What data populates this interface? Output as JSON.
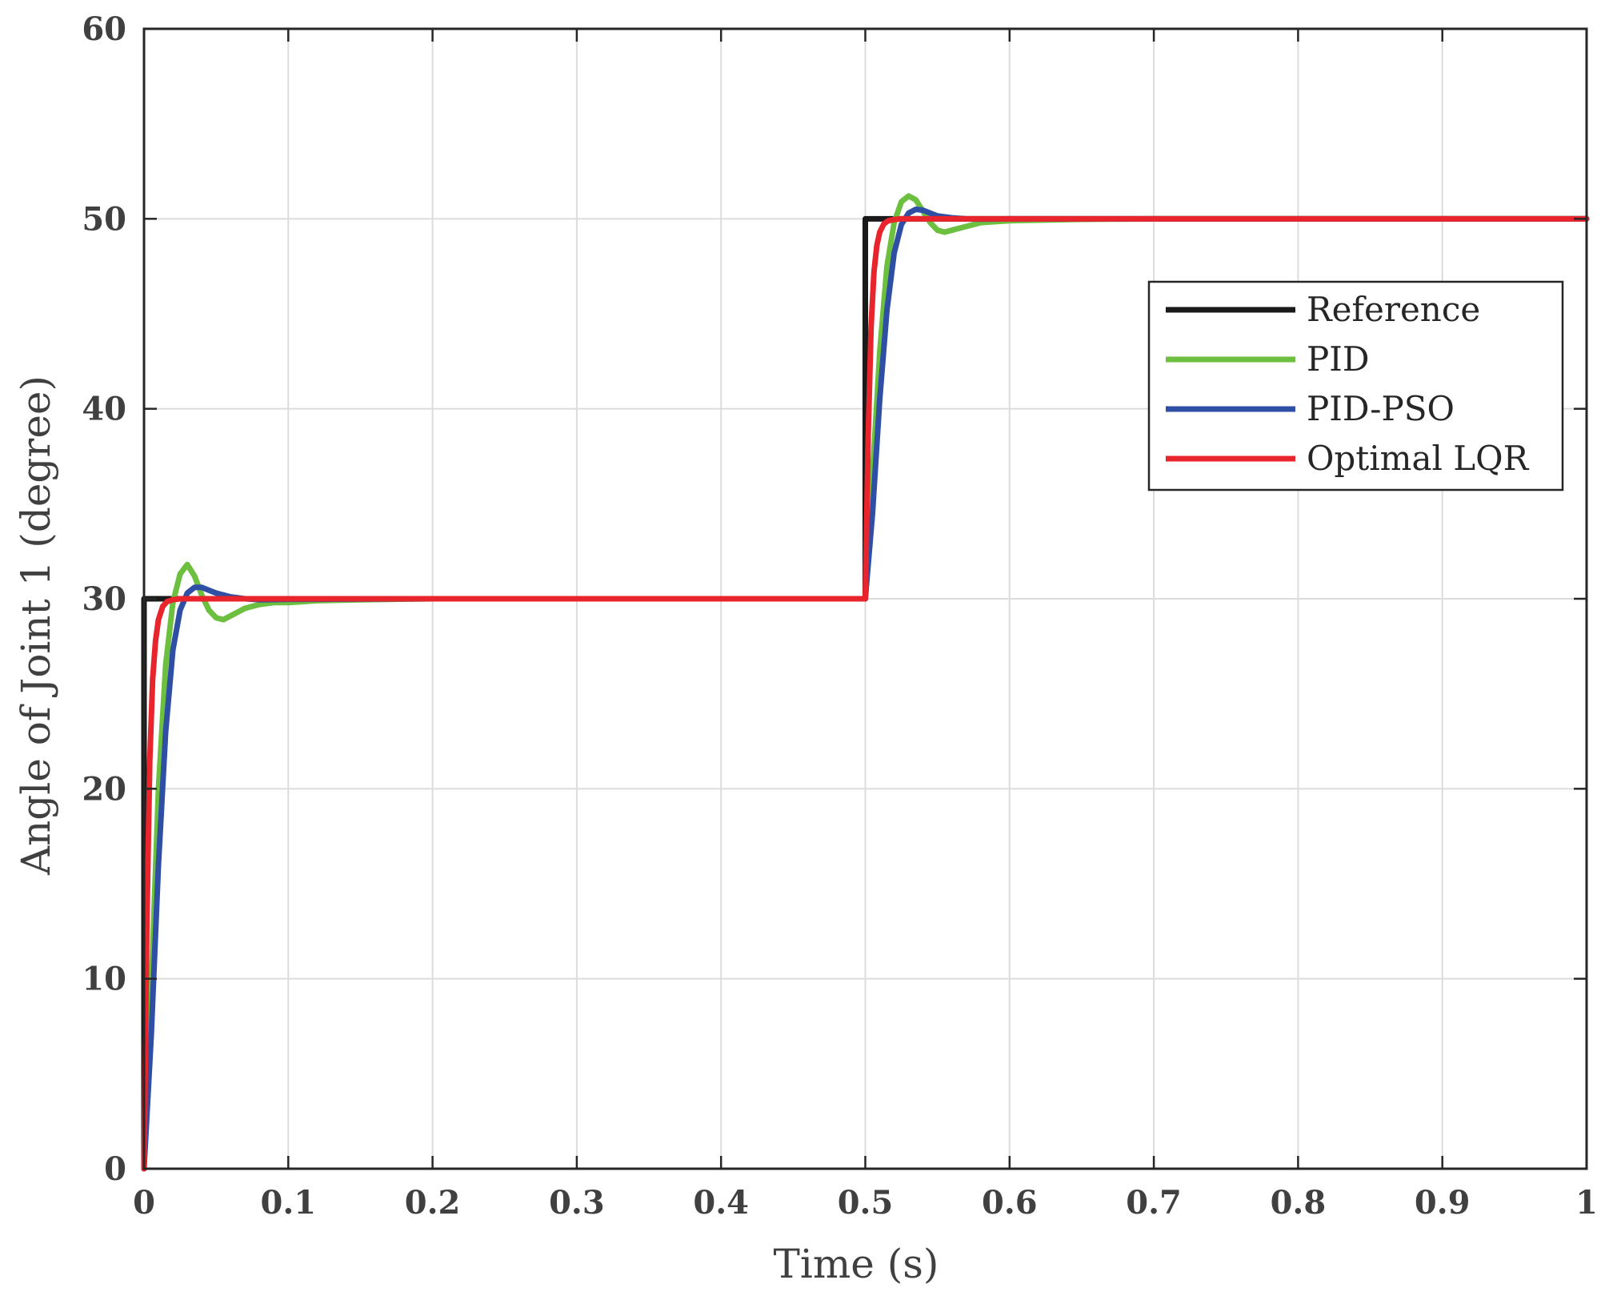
{
  "chart_data": {
    "type": "line",
    "title": "",
    "xlabel": "Time (s)",
    "ylabel": "Angle of Joint 1 (degree)",
    "xlim": [
      0,
      1
    ],
    "ylim": [
      0,
      60
    ],
    "xticks": [
      "0",
      "0.1",
      "0.2",
      "0.3",
      "0.4",
      "0.5",
      "0.6",
      "0.7",
      "0.8",
      "0.9",
      "1"
    ],
    "yticks": [
      "0",
      "10",
      "20",
      "30",
      "40",
      "50",
      "60"
    ],
    "grid": true,
    "legend_position": "top-right",
    "series": [
      {
        "name": "Reference",
        "color": "#1a1a1a",
        "x": [
          0,
          0,
          0.5,
          0.5,
          1
        ],
        "y": [
          0,
          30,
          30,
          50,
          50
        ]
      },
      {
        "name": "PID",
        "color": "#6cbf3f",
        "x": [
          0,
          0.005,
          0.01,
          0.015,
          0.02,
          0.025,
          0.03,
          0.035,
          0.04,
          0.045,
          0.05,
          0.055,
          0.06,
          0.07,
          0.08,
          0.09,
          0.1,
          0.12,
          0.15,
          0.2,
          0.5,
          0.505,
          0.51,
          0.515,
          0.52,
          0.525,
          0.53,
          0.535,
          0.54,
          0.545,
          0.55,
          0.555,
          0.56,
          0.57,
          0.58,
          0.59,
          0.6,
          0.62,
          0.65,
          0.7,
          1
        ],
        "y": [
          0,
          9.5,
          20,
          26.5,
          29.8,
          31.3,
          31.8,
          31.2,
          30.2,
          29.4,
          29,
          28.9,
          29.1,
          29.5,
          29.7,
          29.8,
          29.8,
          29.9,
          29.95,
          30,
          30,
          36.5,
          43,
          47.5,
          49.8,
          50.9,
          51.2,
          51,
          50.4,
          49.8,
          49.4,
          49.3,
          49.4,
          49.6,
          49.8,
          49.85,
          49.9,
          49.93,
          49.97,
          50,
          50
        ]
      },
      {
        "name": "PID-PSO",
        "color": "#2e4fa3",
        "x": [
          0,
          0.005,
          0.01,
          0.015,
          0.02,
          0.025,
          0.03,
          0.035,
          0.04,
          0.045,
          0.05,
          0.06,
          0.07,
          0.08,
          0.1,
          0.2,
          0.5,
          0.505,
          0.51,
          0.515,
          0.52,
          0.525,
          0.53,
          0.535,
          0.54,
          0.545,
          0.55,
          0.56,
          0.57,
          0.58,
          0.6,
          0.7,
          1
        ],
        "y": [
          0,
          7,
          16,
          23,
          27.3,
          29.4,
          30.3,
          30.6,
          30.6,
          30.45,
          30.3,
          30.1,
          30,
          29.95,
          29.97,
          30,
          30,
          34.5,
          40.5,
          45.2,
          48.2,
          49.7,
          50.3,
          50.5,
          50.45,
          50.3,
          50.15,
          50.05,
          50,
          49.98,
          50,
          50,
          50
        ]
      },
      {
        "name": "Optimal LQR",
        "color": "#e8242c",
        "x": [
          0,
          0.002,
          0.004,
          0.006,
          0.008,
          0.01,
          0.013,
          0.016,
          0.02,
          0.025,
          0.03,
          0.5,
          0.502,
          0.504,
          0.506,
          0.508,
          0.51,
          0.513,
          0.516,
          0.52,
          0.525,
          0.53,
          1
        ],
        "y": [
          0,
          13,
          21.5,
          25.8,
          27.8,
          28.9,
          29.6,
          29.85,
          29.95,
          30,
          30,
          30,
          38.6,
          44.3,
          47.2,
          48.6,
          49.3,
          49.75,
          49.9,
          49.96,
          50,
          50,
          50
        ]
      }
    ]
  }
}
